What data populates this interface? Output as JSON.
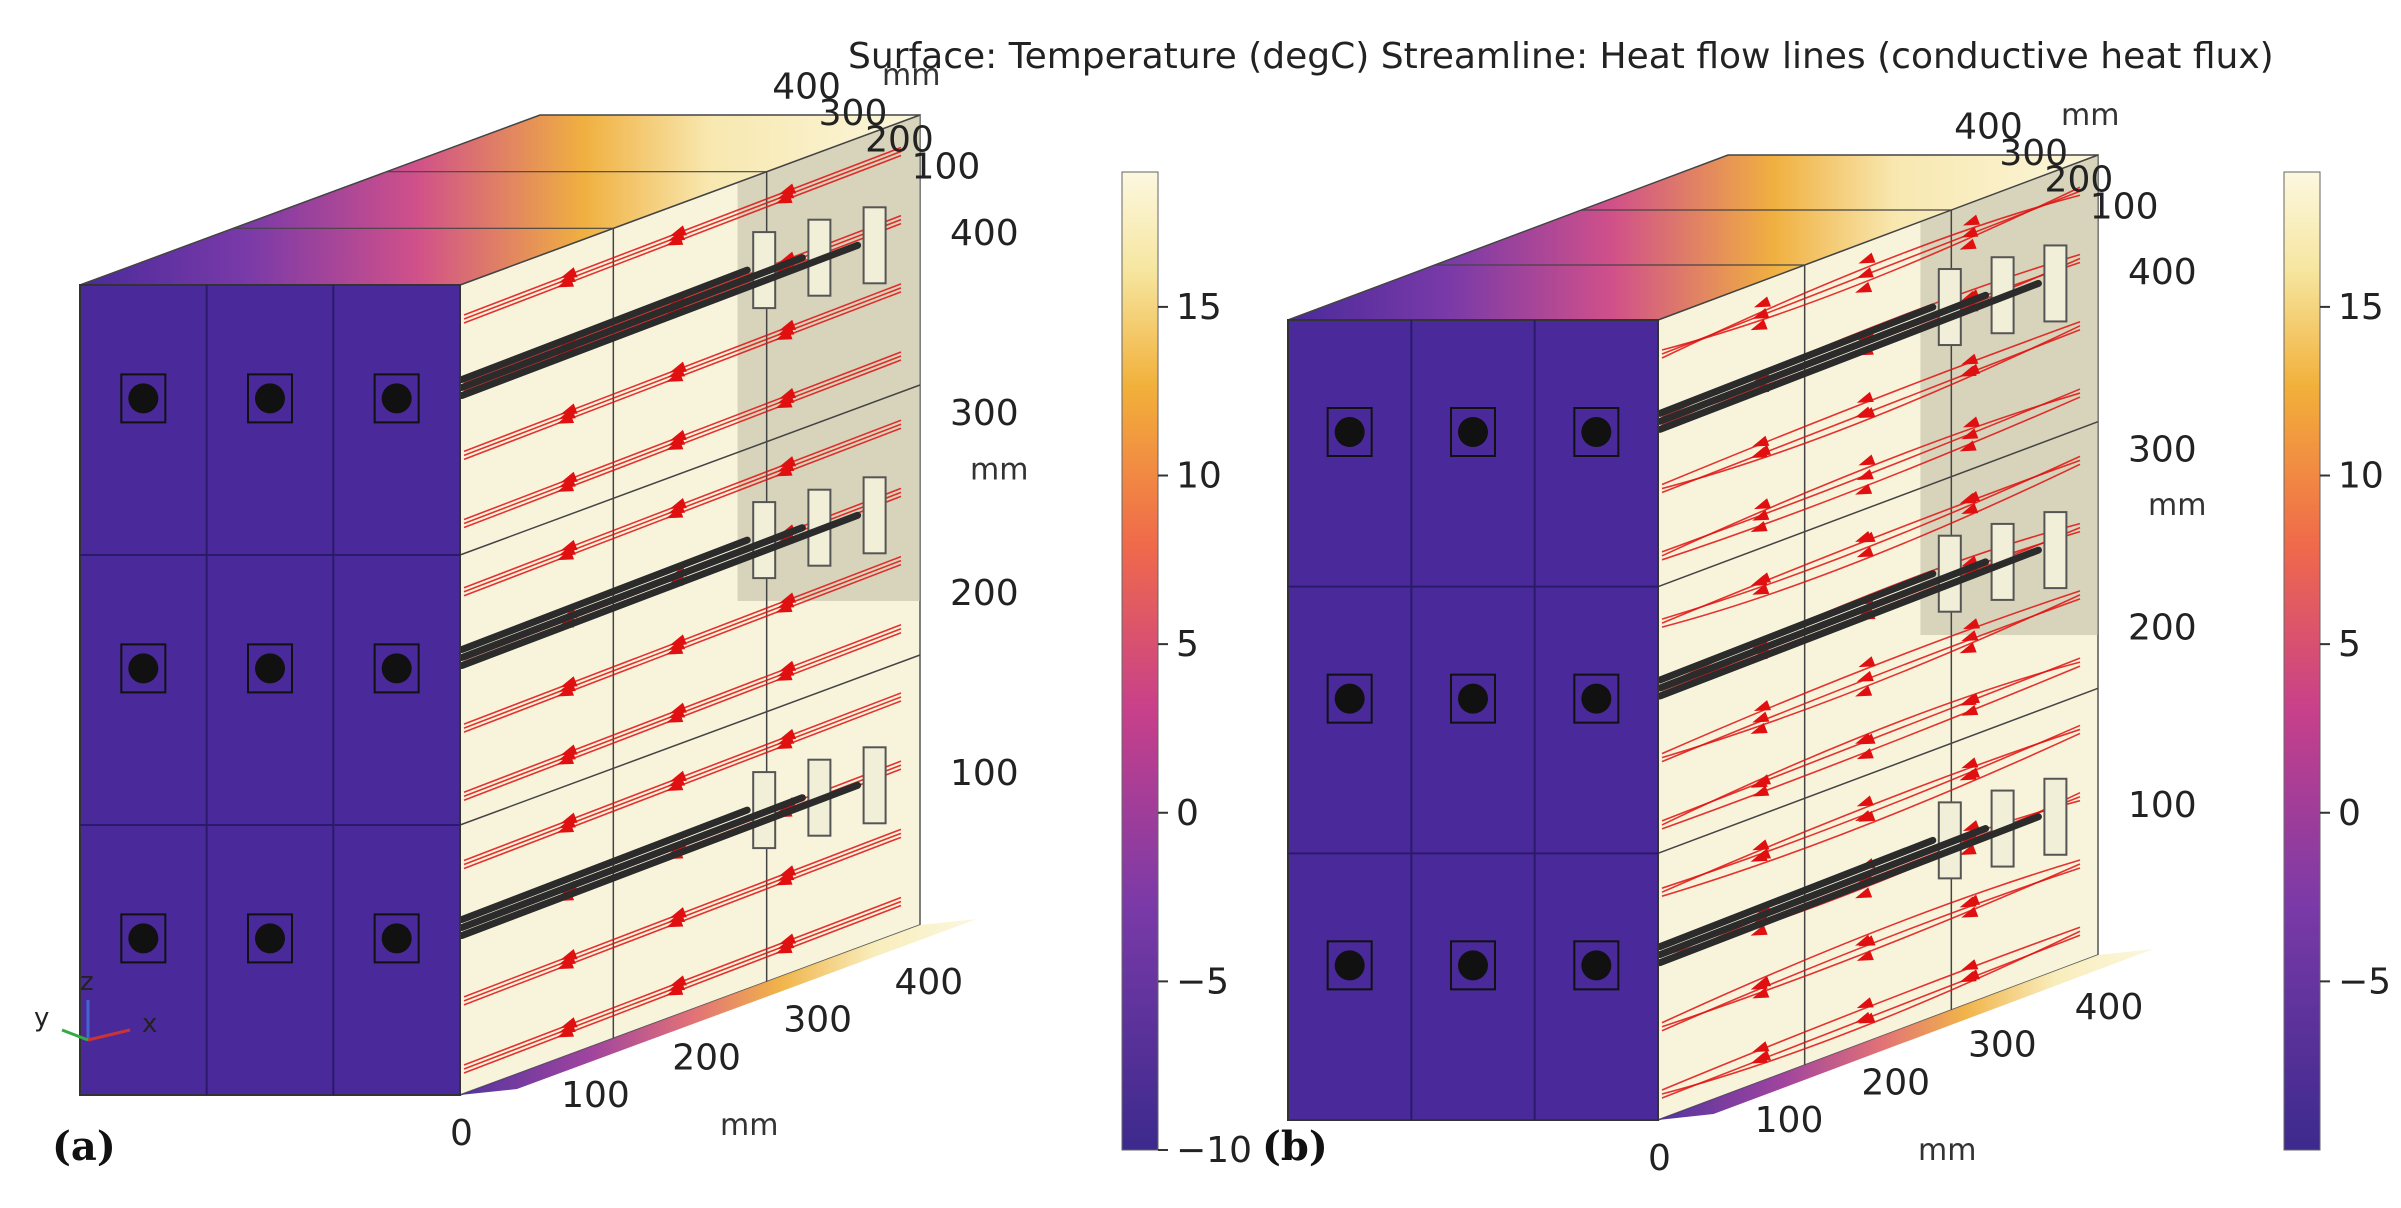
{
  "title": "Surface: Temperature (degC)  Streamline: Heat flow lines (conductive heat flux)",
  "colors": {
    "cold": "#4a2a9a",
    "mid": "#c23a8a",
    "warm": "#e8a030",
    "hot": "#fbf7dc",
    "streamline": "#e01010",
    "tube": "#2b2b2b"
  },
  "colorbar": {
    "unit": "degC",
    "min": -10,
    "max": 19,
    "left_ticks": [
      "15",
      "10",
      "5",
      "0",
      "−5",
      "−10"
    ],
    "right_ticks": [
      "15",
      "10",
      "5",
      "0",
      "−5"
    ]
  },
  "panels": [
    {
      "label": "(a)",
      "axis_unit": "mm",
      "x_ticks": [
        "0",
        "100",
        "200",
        "300",
        "400"
      ],
      "y_ticks": [
        "400",
        "300",
        "200",
        "100"
      ],
      "z_ticks": [
        "400",
        "300",
        "200",
        "100"
      ],
      "streamline_style": "straight"
    },
    {
      "label": "(b)",
      "axis_unit": "mm",
      "x_ticks": [
        "0",
        "100",
        "200",
        "300",
        "400"
      ],
      "y_ticks": [
        "400",
        "300",
        "200",
        "100"
      ],
      "z_ticks": [
        "400",
        "300",
        "200",
        "100"
      ],
      "streamline_style": "curved"
    }
  ],
  "triad": {
    "z": "z",
    "y": "y",
    "x": "x"
  }
}
